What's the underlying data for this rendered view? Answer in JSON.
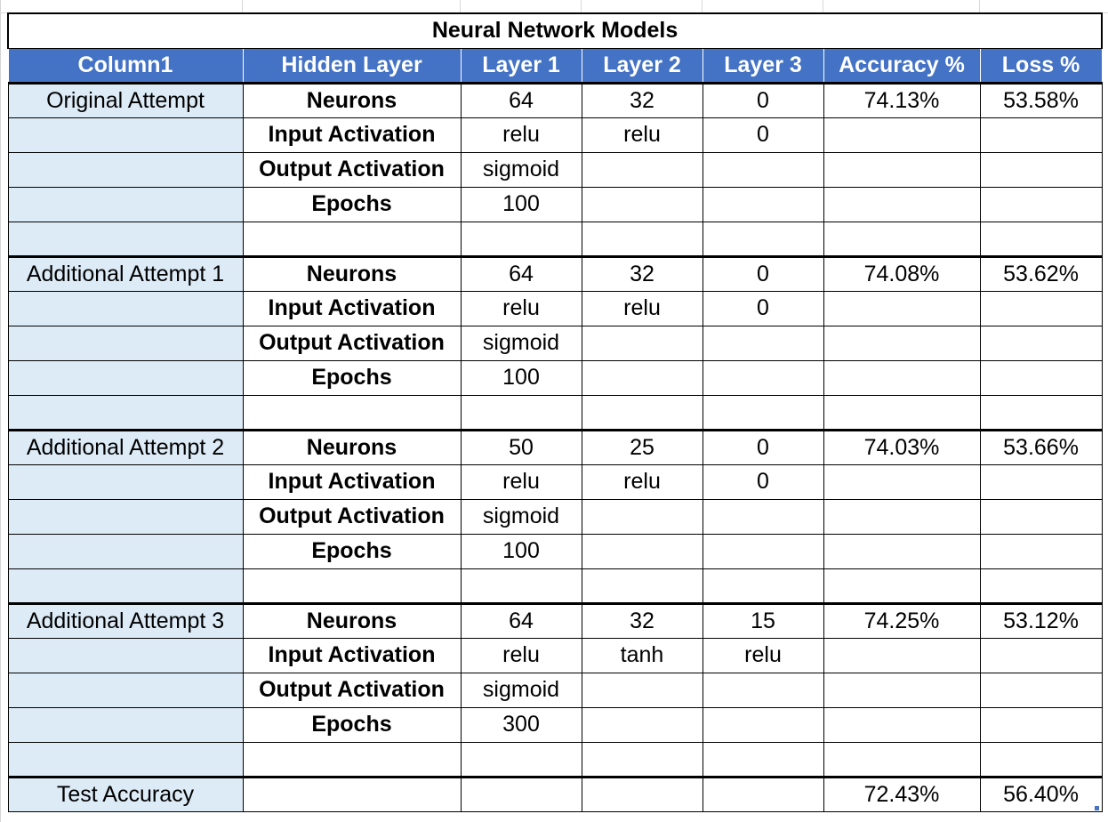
{
  "title": "Neural Network Models",
  "headers": [
    "Column1",
    "Hidden Layer",
    "Layer 1",
    "Layer 2",
    "Layer 3",
    "Accuracy %",
    "Loss %"
  ],
  "attempts": [
    {
      "name": "Original Attempt",
      "rows": [
        {
          "param": "Neurons",
          "l1": "64",
          "l2": "32",
          "l3": "0",
          "acc": "74.13%",
          "loss": "53.58%"
        },
        {
          "param": "Input Activation",
          "l1": "relu",
          "l2": "relu",
          "l3": "0",
          "acc": "",
          "loss": ""
        },
        {
          "param": "Output Activation",
          "l1": "sigmoid",
          "l2": "",
          "l3": "",
          "acc": "",
          "loss": ""
        },
        {
          "param": "Epochs",
          "l1": "100",
          "l2": "",
          "l3": "",
          "acc": "",
          "loss": ""
        }
      ]
    },
    {
      "name": "Additional Attempt 1",
      "rows": [
        {
          "param": "Neurons",
          "l1": "64",
          "l2": "32",
          "l3": "0",
          "acc": "74.08%",
          "loss": "53.62%"
        },
        {
          "param": "Input Activation",
          "l1": "relu",
          "l2": "relu",
          "l3": "0",
          "acc": "",
          "loss": ""
        },
        {
          "param": "Output Activation",
          "l1": "sigmoid",
          "l2": "",
          "l3": "",
          "acc": "",
          "loss": ""
        },
        {
          "param": "Epochs",
          "l1": "100",
          "l2": "",
          "l3": "",
          "acc": "",
          "loss": ""
        }
      ]
    },
    {
      "name": "Additional Attempt 2",
      "rows": [
        {
          "param": "Neurons",
          "l1": "50",
          "l2": "25",
          "l3": "0",
          "acc": "74.03%",
          "loss": "53.66%"
        },
        {
          "param": "Input Activation",
          "l1": "relu",
          "l2": "relu",
          "l3": "0",
          "acc": "",
          "loss": ""
        },
        {
          "param": "Output Activation",
          "l1": "sigmoid",
          "l2": "",
          "l3": "",
          "acc": "",
          "loss": ""
        },
        {
          "param": "Epochs",
          "l1": "100",
          "l2": "",
          "l3": "",
          "acc": "",
          "loss": ""
        }
      ]
    },
    {
      "name": "Additional Attempt 3",
      "rows": [
        {
          "param": "Neurons",
          "l1": "64",
          "l2": "32",
          "l3": "15",
          "acc": "74.25%",
          "loss": "53.12%"
        },
        {
          "param": "Input Activation",
          "l1": "relu",
          "l2": "tanh",
          "l3": "relu",
          "acc": "",
          "loss": ""
        },
        {
          "param": "Output Activation",
          "l1": "sigmoid",
          "l2": "",
          "l3": "",
          "acc": "",
          "loss": ""
        },
        {
          "param": "Epochs",
          "l1": "300",
          "l2": "",
          "l3": "",
          "acc": "",
          "loss": ""
        }
      ]
    }
  ],
  "test": {
    "label": "Test Accuracy",
    "acc": "72.43%",
    "loss": "56.40%"
  },
  "colors": {
    "header_bg": "#4472c4",
    "header_text": "#ffffff",
    "name_col_bg": "#ddebf7"
  }
}
